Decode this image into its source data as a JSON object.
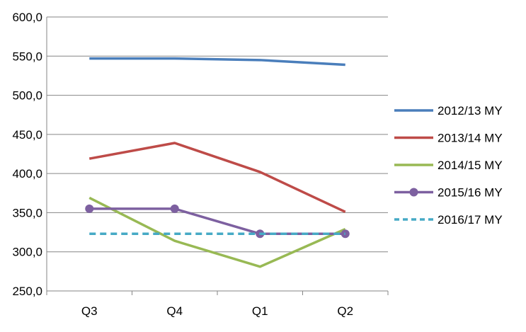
{
  "chart_data": {
    "type": "line",
    "title": "",
    "xlabel": "",
    "ylabel": "",
    "categories": [
      "Q3",
      "Q4",
      "Q1",
      "Q2"
    ],
    "y_ticks": [
      "250,0",
      "300,0",
      "350,0",
      "400,0",
      "450,0",
      "500,0",
      "550,0",
      "600,0"
    ],
    "ylim": [
      250,
      600
    ],
    "grid": "horizontal",
    "legend_position": "right",
    "series": [
      {
        "name": "2012/13 MY",
        "values": [
          547,
          547,
          545,
          539
        ],
        "color": "#4A7EBB",
        "style": "solid",
        "marker": "none"
      },
      {
        "name": "2013/14 MY",
        "values": [
          419,
          439,
          402,
          351
        ],
        "color": "#BE4B48",
        "style": "solid",
        "marker": "none"
      },
      {
        "name": "2014/15 MY",
        "values": [
          369,
          314,
          281,
          329
        ],
        "color": "#98B954",
        "style": "solid",
        "marker": "none"
      },
      {
        "name": "2015/16 MY",
        "values": [
          355,
          355,
          323,
          323
        ],
        "color": "#7D60A0",
        "style": "solid",
        "marker": "circle"
      },
      {
        "name": "2016/17 MY",
        "values": [
          323,
          323,
          323,
          323
        ],
        "color": "#46AAC5",
        "style": "dashed",
        "marker": "none"
      }
    ]
  }
}
